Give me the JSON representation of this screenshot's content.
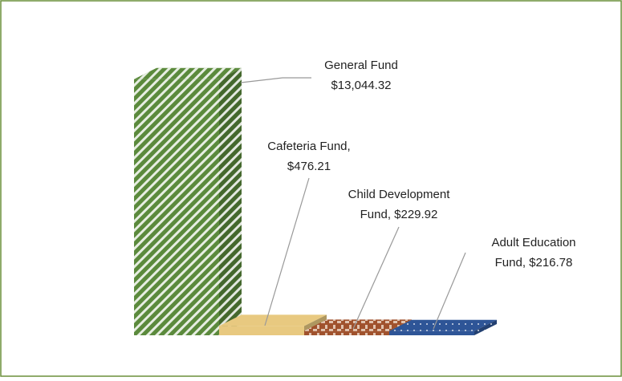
{
  "chart_data": {
    "type": "bar3d",
    "values": [
      13044.32,
      476.21,
      229.92,
      216.78
    ],
    "value_labels": [
      [
        "General Fund",
        "$13,044.32"
      ],
      [
        "Cafeteria Fund,",
        "$476.21"
      ],
      [
        "Child Development",
        "Fund, $229.92"
      ],
      [
        "Adult Education",
        "Fund, $216.78"
      ]
    ],
    "colors": [
      "#5b8a3c",
      "#e8c980",
      "#a0522d",
      "#2e5597"
    ],
    "patterns": [
      "stripes",
      "none",
      "weave",
      "dots"
    ],
    "ylim": [
      0,
      13400
    ]
  }
}
